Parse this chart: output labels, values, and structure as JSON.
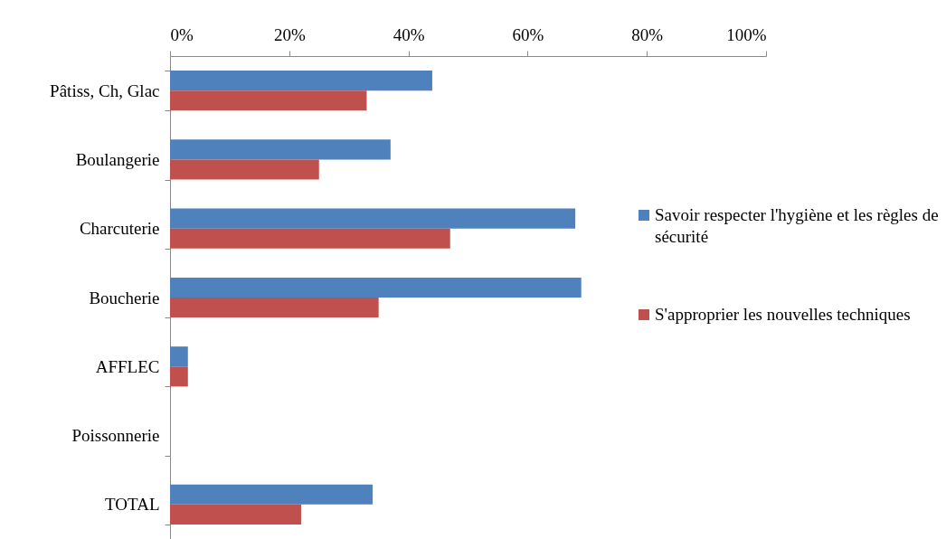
{
  "chart_data": {
    "type": "bar",
    "orientation": "horizontal",
    "categories": [
      "Pâtiss, Ch, Glac",
      "Boulangerie",
      "Charcuterie",
      "Boucherie",
      "AFFLEC",
      "Poissonnerie",
      "TOTAL"
    ],
    "series": [
      {
        "name": "Savoir respecter l'hygiène et les règles de sécurité",
        "color": "#4f81bd",
        "values": [
          44,
          37,
          68,
          69,
          3,
          0,
          34
        ]
      },
      {
        "name": "S'approprier les nouvelles techniques",
        "color": "#c0504d",
        "values": [
          33,
          25,
          47,
          35,
          3,
          0,
          22
        ]
      }
    ],
    "xlim": [
      0,
      100
    ],
    "xticks": [
      {
        "value": 0,
        "label": "0%"
      },
      {
        "value": 20,
        "label": "20%"
      },
      {
        "value": 40,
        "label": "40%"
      },
      {
        "value": 60,
        "label": "60%"
      },
      {
        "value": 80,
        "label": "80%"
      },
      {
        "value": 100,
        "label": "100%"
      }
    ],
    "grid": false,
    "legend": "right"
  }
}
